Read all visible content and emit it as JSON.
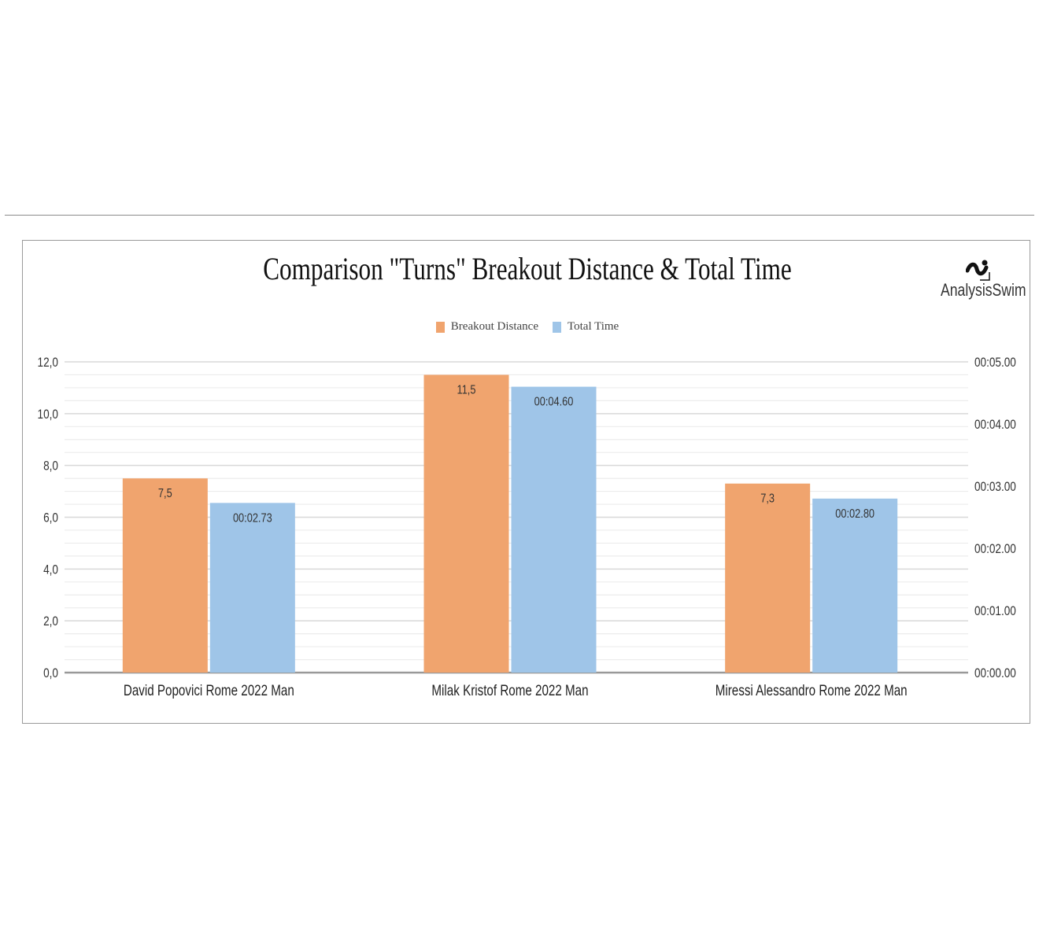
{
  "chart_data": {
    "type": "bar",
    "title": "Comparison \"Turns\" Breakout Distance & Total Time",
    "categories": [
      "David Popovici Rome 2022 Man",
      "Milak Kristof Rome 2022 Man",
      "Miressi Alessandro Rome 2022 Man"
    ],
    "series": [
      {
        "name": "Breakout Distance",
        "axis": "left",
        "values": [
          7.5,
          11.5,
          7.3
        ],
        "labels": [
          "7,5",
          "11,5",
          "7,3"
        ],
        "color": "#f0a46e"
      },
      {
        "name": "Total Time",
        "axis": "right",
        "values": [
          2.73,
          4.6,
          2.8
        ],
        "labels": [
          "00:02.73",
          "00:04.60",
          "00:02.80"
        ],
        "color": "#9fc5e8"
      }
    ],
    "ylim_left": [
      0,
      12
    ],
    "yticks_left": [
      "0,0",
      "2,0",
      "4,0",
      "6,0",
      "8,0",
      "10,0",
      "12,0"
    ],
    "ylim_right": [
      0,
      5
    ],
    "yticks_right": [
      "00:00.00",
      "00:01.00",
      "00:02.00",
      "00:03.00",
      "00:04.00",
      "00:05.00"
    ],
    "grid": true,
    "legend_position": "top-center"
  },
  "brand": {
    "name": "AnalysisSwim",
    "icon": "swimmer-logo-icon"
  }
}
